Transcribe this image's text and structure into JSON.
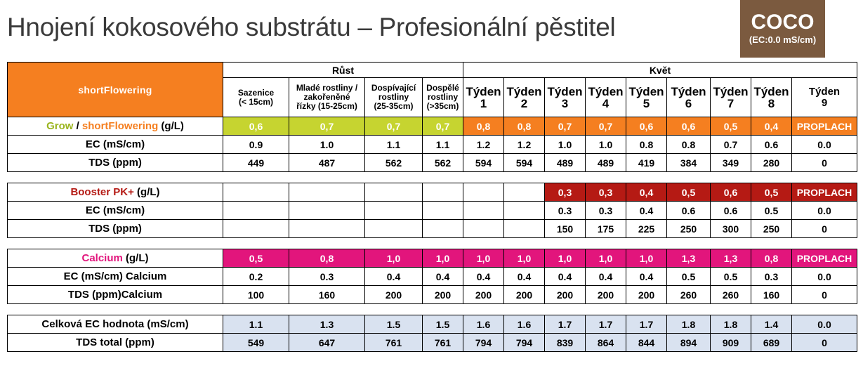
{
  "title": "Hnojení kokosového substrátu – Profesionální pěstitel",
  "badge": {
    "label": "COCO",
    "sub": "(EC:0.0 mS/cm)"
  },
  "brand": "shortFlowering",
  "growth_header": "Růst",
  "flower_header": "Květ",
  "stages": [
    [
      "Sazenice",
      "(< 15cm)"
    ],
    [
      "Mladé rostliny /",
      "zakořeněné",
      "řízky  (15-25cm)"
    ],
    [
      "Dospívající",
      "rostliny",
      "(25-35cm)"
    ],
    [
      "Dospělé",
      "rostliny",
      "(>35cm)"
    ]
  ],
  "weeks": [
    [
      "Týden",
      "1"
    ],
    [
      "Týden",
      "2"
    ],
    [
      "Týden",
      "3"
    ],
    [
      "Týden",
      "4"
    ],
    [
      "Týden",
      "5"
    ],
    [
      "Týden",
      "6"
    ],
    [
      "Týden",
      "7"
    ],
    [
      "Týden",
      "8"
    ],
    [
      "Týden",
      "9"
    ]
  ],
  "sections": [
    {
      "label_parts": [
        {
          "text": "Grow",
          "color": "grn"
        },
        {
          "text": " / ",
          "color": ""
        },
        {
          "text": "shortFlowering",
          "color": "org"
        },
        {
          "text": " (g/L)",
          "color": ""
        }
      ],
      "dose_colors": [
        "grn",
        "grn",
        "grn",
        "grn",
        "org",
        "org",
        "org",
        "org",
        "org",
        "org",
        "org",
        "org",
        "org"
      ],
      "dose": [
        "0,6",
        "0,7",
        "0,7",
        "0,7",
        "0,8",
        "0,8",
        "0,7",
        "0,7",
        "0,6",
        "0,6",
        "0,5",
        "0,4",
        "PROPLACH"
      ],
      "rows": [
        {
          "label": "EC (mS/cm)",
          "values": [
            "0.9",
            "1.0",
            "1.1",
            "1.1",
            "1.2",
            "1.2",
            "1.0",
            "1.0",
            "0.8",
            "0.8",
            "0.7",
            "0.6",
            "0.0"
          ]
        },
        {
          "label": "TDS (ppm)",
          "values": [
            "449",
            "487",
            "562",
            "562",
            "594",
            "594",
            "489",
            "489",
            "419",
            "384",
            "349",
            "280",
            "0"
          ]
        }
      ]
    },
    {
      "label_parts": [
        {
          "text": "Booster PK+",
          "color": "red"
        },
        {
          "text": " (g/L)",
          "color": ""
        }
      ],
      "dose_colors": [
        "",
        "",
        "",
        "",
        "",
        "",
        "red",
        "red",
        "red",
        "red",
        "red",
        "red",
        "red"
      ],
      "dose": [
        "",
        "",
        "",
        "",
        "",
        "",
        "0,3",
        "0,3",
        "0,4",
        "0,5",
        "0,6",
        "0,5",
        "PROPLACH"
      ],
      "rows": [
        {
          "label": "EC (mS/cm)",
          "values": [
            "",
            "",
            "",
            "",
            "",
            "",
            "0.3",
            "0.3",
            "0.4",
            "0.6",
            "0.6",
            "0.5",
            "0.0"
          ]
        },
        {
          "label": "TDS (ppm)",
          "values": [
            "",
            "",
            "",
            "",
            "",
            "",
            "150",
            "175",
            "225",
            "250",
            "300",
            "250",
            "0"
          ]
        }
      ]
    },
    {
      "label_parts": [
        {
          "text": "Calcium",
          "color": "mag"
        },
        {
          "text": " (g/L)",
          "color": ""
        }
      ],
      "dose_colors": [
        "mag",
        "mag",
        "mag",
        "mag",
        "mag",
        "mag",
        "mag",
        "mag",
        "mag",
        "mag",
        "mag",
        "mag",
        "mag"
      ],
      "dose": [
        "0,5",
        "0,8",
        "1,0",
        "1,0",
        "1,0",
        "1,0",
        "1,0",
        "1,0",
        "1,0",
        "1,3",
        "1,3",
        "0,8",
        "PROPLACH"
      ],
      "rows": [
        {
          "label": "EC (mS/cm) Calcium",
          "values": [
            "0.2",
            "0.3",
            "0.4",
            "0.4",
            "0.4",
            "0.4",
            "0.4",
            "0.4",
            "0.4",
            "0.5",
            "0.5",
            "0.3",
            "0.0"
          ]
        },
        {
          "label": "TDS (ppm)Calcium",
          "values": [
            "100",
            "160",
            "200",
            "200",
            "200",
            "200",
            "200",
            "200",
            "200",
            "260",
            "260",
            "160",
            "0"
          ]
        }
      ]
    }
  ],
  "totals": [
    {
      "label": "Celková EC hodnota (mS/cm)",
      "values": [
        "1.1",
        "1.3",
        "1.5",
        "1.5",
        "1.6",
        "1.6",
        "1.7",
        "1.7",
        "1.7",
        "1.8",
        "1.8",
        "1.4",
        "0.0"
      ]
    },
    {
      "label": "TDS total (ppm)",
      "values": [
        "549",
        "647",
        "761",
        "761",
        "794",
        "794",
        "839",
        "864",
        "844",
        "894",
        "909",
        "689",
        "0"
      ]
    }
  ]
}
